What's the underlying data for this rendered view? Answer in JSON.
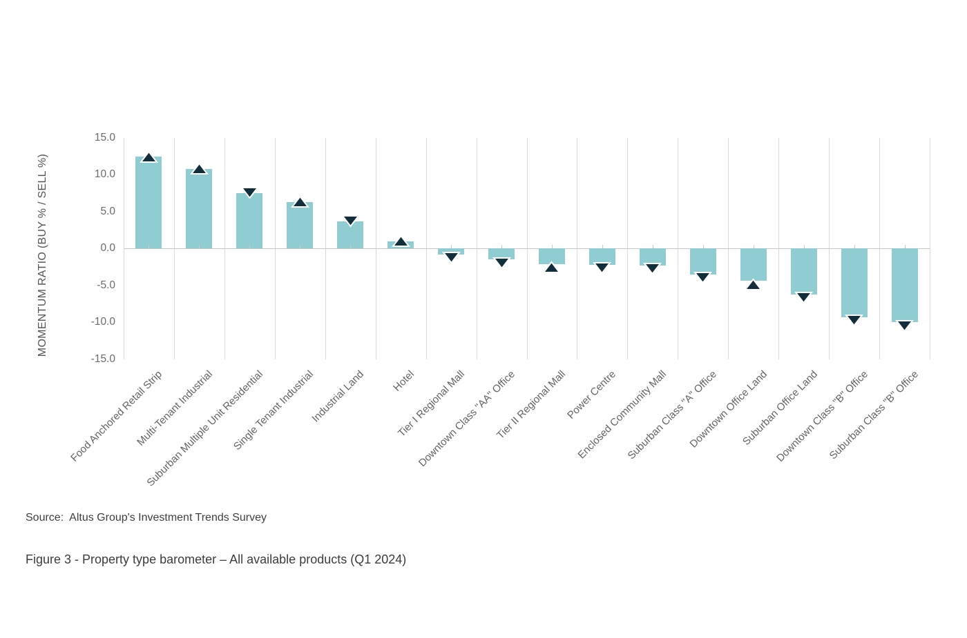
{
  "chart_data": {
    "type": "bar",
    "title": "",
    "xlabel": "",
    "ylabel": "MOMENTUM RATIO (BUY % / SELL %)",
    "ylim": [
      -15,
      15
    ],
    "ytick_step": 5,
    "ytick_labels": [
      "15.0",
      "10.0",
      "5.0",
      "0.0",
      "-5.0",
      "-10.0",
      "-15.0"
    ],
    "grid": "vertical-only",
    "legend": "none",
    "categories": [
      "Food Anchored Retail Strip",
      "Multi-Tenant Industrial",
      "Suburban Multiple Unit Residential",
      "Single Tenant Industrial",
      "Industrial Land",
      "Hotel",
      "Tier I Regional Mall",
      "Downtown Class \"AA\" Office",
      "Tier II Regional Mall",
      "Power Centre",
      "Enclosed Community Mall",
      "Suburban Class \"A\" Office",
      "Downtown Office Land",
      "Suburban Office Land",
      "Downtown Class \"B\" Office",
      "Suburban Class \"B\" Office"
    ],
    "values": [
      12.4,
      10.8,
      7.5,
      6.3,
      3.7,
      1.0,
      -0.8,
      -1.5,
      -2.1,
      -2.2,
      -2.3,
      -3.5,
      -4.4,
      -6.2,
      -9.3,
      -10.0
    ],
    "marker_directions": [
      "up",
      "up",
      "down",
      "up",
      "down",
      "up",
      "down",
      "down",
      "up",
      "down",
      "down",
      "down",
      "up",
      "down",
      "down",
      "down"
    ],
    "bar_color": "#90CDD3",
    "marker_color": "#132E3B",
    "marker_outline_color": "#FFFFFF",
    "gridline_color": "#D9D9D9",
    "axis_line_color": "#C6C6C6"
  },
  "source_label": "Source:  Altus Group's Investment Trends Survey",
  "figure_caption": "Figure 3 - Property type barometer – All available products (Q1 2024)"
}
